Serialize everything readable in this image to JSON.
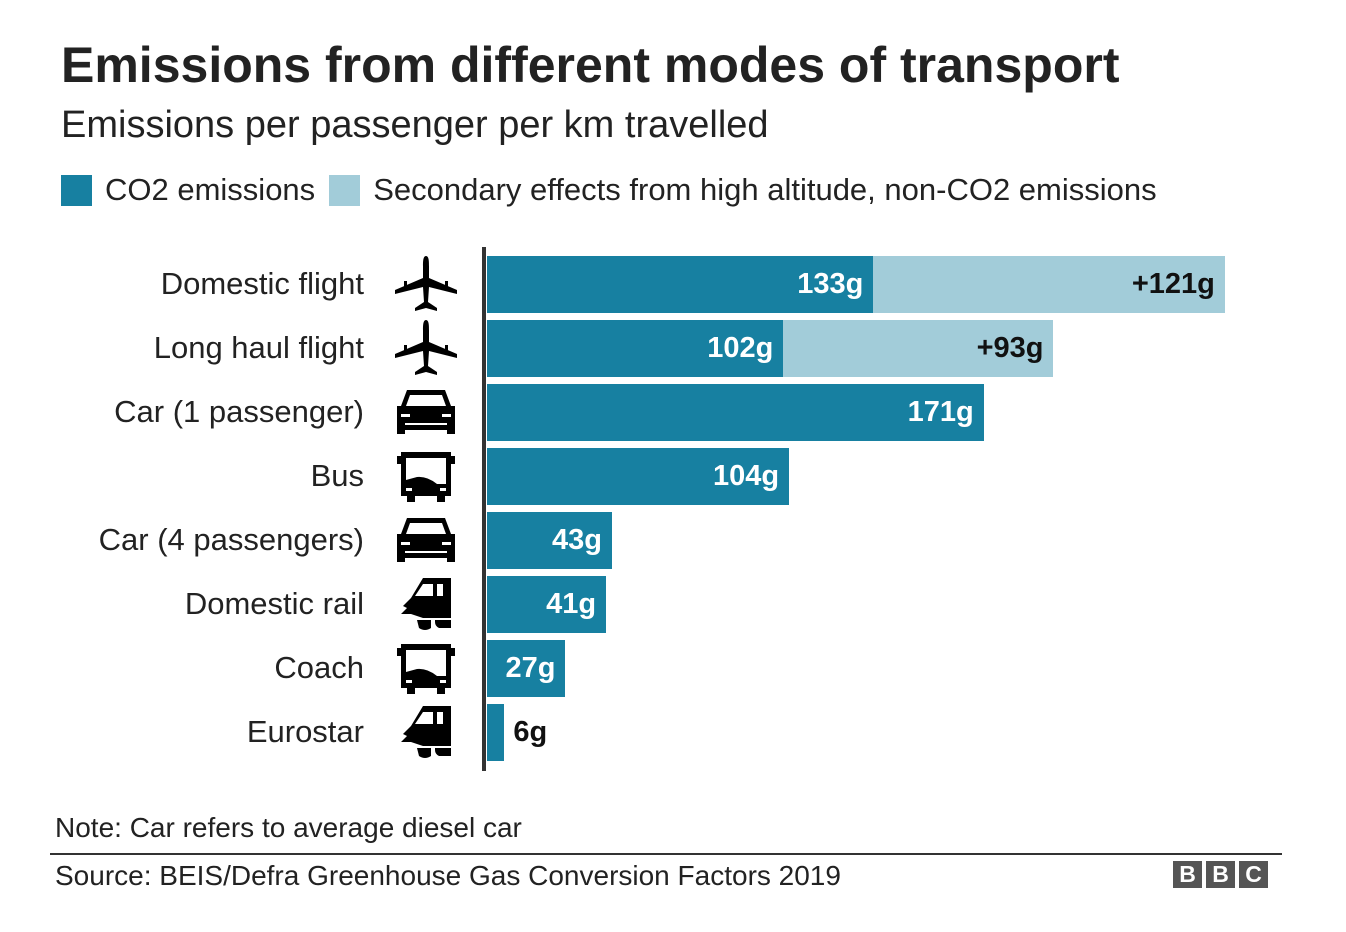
{
  "chart_data": {
    "type": "bar",
    "orientation": "horizontal",
    "stacked": true,
    "title": "Emissions from different modes of transport",
    "subtitle": "Emissions per passenger per km travelled",
    "categories": [
      "Domestic flight",
      "Long haul flight",
      "Car (1 passenger)",
      "Bus",
      "Car (4 passengers)",
      "Domestic rail",
      "Coach",
      "Eurostar"
    ],
    "icons": [
      "plane-icon",
      "plane-icon",
      "car-icon",
      "bus-icon",
      "car-icon",
      "train-icon",
      "bus-icon",
      "train-icon"
    ],
    "series": [
      {
        "name": "CO2 emissions",
        "color": "#1780a1",
        "values": [
          133,
          102,
          171,
          104,
          43,
          41,
          27,
          6
        ],
        "labels": [
          "133g",
          "102g",
          "171g",
          "104g",
          "43g",
          "41g",
          "27g",
          "6g"
        ]
      },
      {
        "name": "Secondary effects from high altitude, non-CO2 emissions",
        "color": "#a2ccd9",
        "values": [
          121,
          93,
          0,
          0,
          0,
          0,
          0,
          0
        ],
        "labels": [
          "+121g",
          "+93g",
          "",
          "",
          "",
          "",
          "",
          ""
        ]
      }
    ],
    "legend": "top-left",
    "grid": false,
    "xlim": [
      0,
      255
    ]
  },
  "note": "Note: Car refers to average diesel car",
  "source": "Source: BEIS/Defra Greenhouse Gas Conversion Factors 2019",
  "logo": [
    "B",
    "B",
    "C"
  ]
}
